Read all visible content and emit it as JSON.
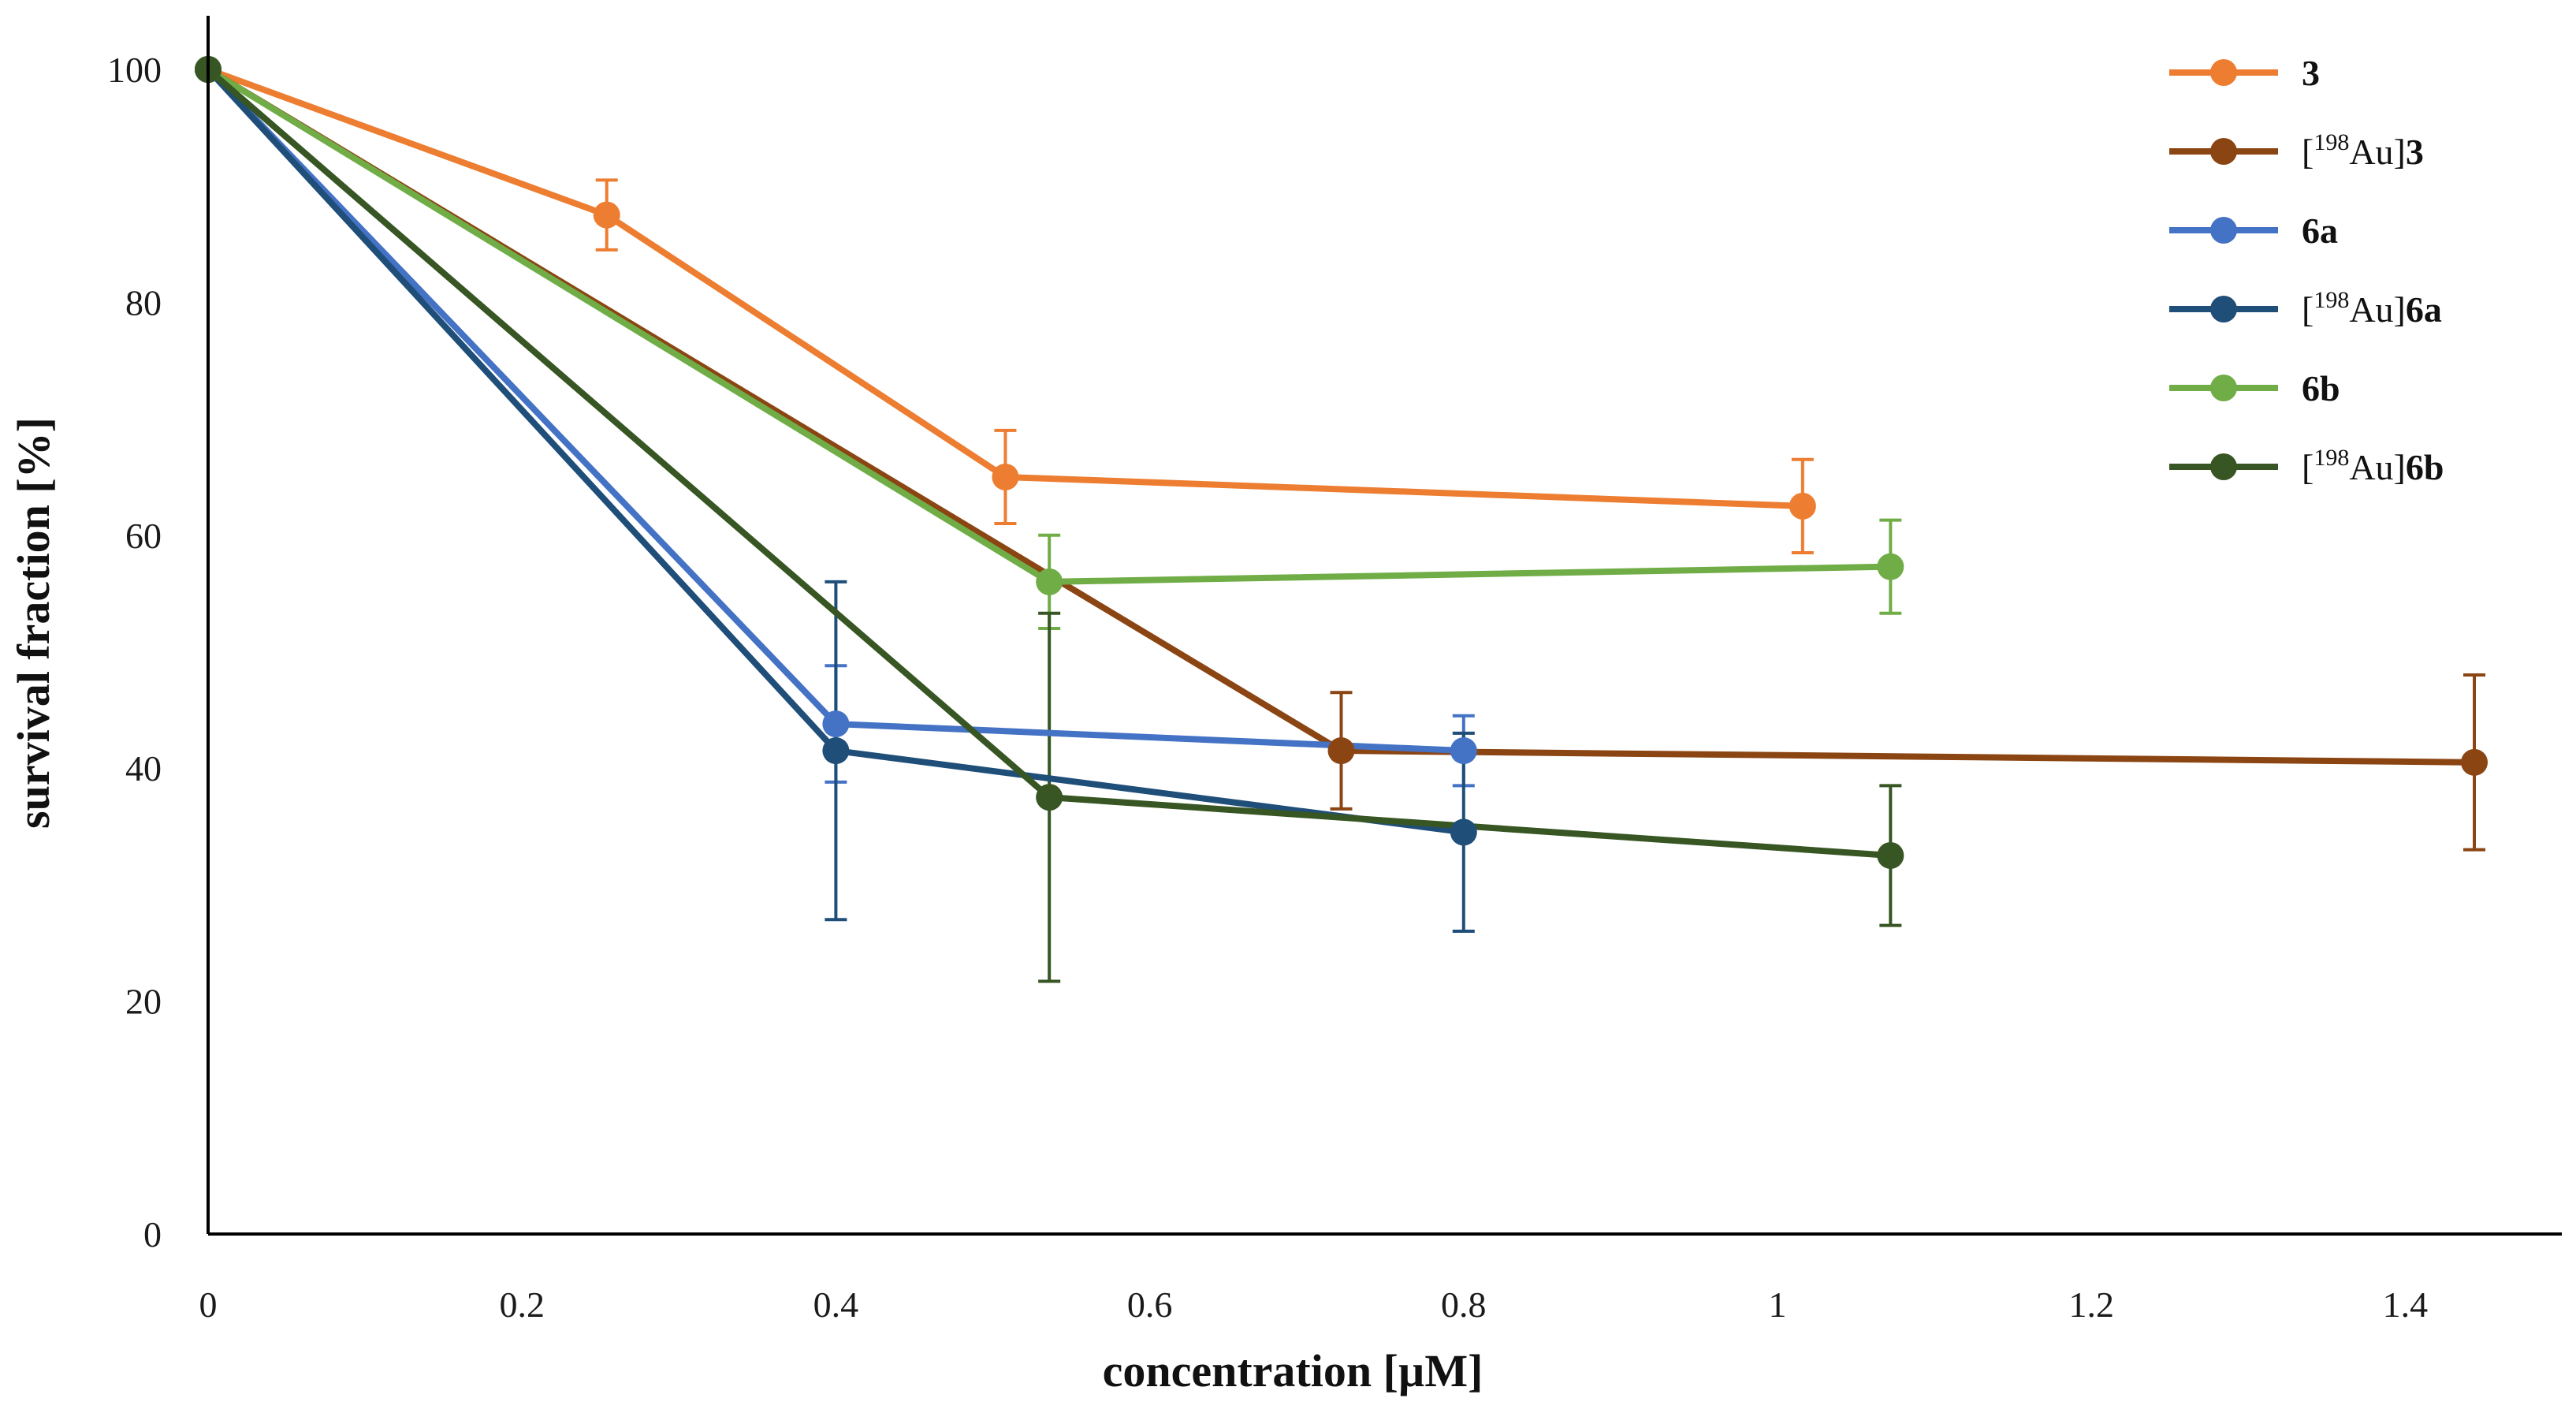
{
  "chart_data": {
    "type": "line",
    "title": "",
    "xlabel": "concentration [µM]",
    "ylabel": "survival fraction [%]",
    "xlim": [
      0,
      1.5
    ],
    "ylim": [
      0,
      100
    ],
    "xticks": [
      "0",
      "0.2",
      "0.4",
      "0.6",
      "0.8",
      "1",
      "1.2",
      "1.4"
    ],
    "yticks": [
      "0",
      "20",
      "40",
      "60",
      "80",
      "100"
    ],
    "legend_position": "top-right",
    "grid": false,
    "series": [
      {
        "name": "3",
        "legend": {
          "bracket_open": "",
          "superscript": "",
          "prefix": "",
          "bold": "3"
        },
        "color": "#ED7D31",
        "x": [
          0,
          0.254,
          0.508,
          1.016
        ],
        "y": [
          100,
          87.5,
          65,
          62.5
        ],
        "err": [
          0,
          3,
          4,
          4
        ]
      },
      {
        "name": "[198Au]3",
        "legend": {
          "bracket_open": "[",
          "superscript": "198",
          "prefix": "Au]",
          "bold": "3"
        },
        "color": "#8B4513",
        "x": [
          0,
          0.722,
          1.444
        ],
        "y": [
          100,
          41.5,
          40.5
        ],
        "err": [
          0,
          5,
          7.5
        ]
      },
      {
        "name": "6a",
        "legend": {
          "bracket_open": "",
          "superscript": "",
          "prefix": "",
          "bold": "6a"
        },
        "color": "#4472C4",
        "x": [
          0,
          0.4,
          0.8
        ],
        "y": [
          100,
          43.8,
          41.5
        ],
        "err": [
          0,
          5,
          3
        ]
      },
      {
        "name": "[198Au]6a",
        "legend": {
          "bracket_open": "[",
          "superscript": "198",
          "prefix": "Au]",
          "bold": "6a"
        },
        "color": "#1F4E79",
        "x": [
          0,
          0.4,
          0.8
        ],
        "y": [
          100,
          41.5,
          34.5
        ],
        "err": [
          0,
          14.5,
          8.5
        ]
      },
      {
        "name": "6b",
        "legend": {
          "bracket_open": "",
          "superscript": "",
          "prefix": "",
          "bold": "6b"
        },
        "color": "#70AD47",
        "x": [
          0,
          0.536,
          1.072
        ],
        "y": [
          100,
          56,
          57.3
        ],
        "err": [
          0,
          4,
          4
        ]
      },
      {
        "name": "[198Au]6b",
        "legend": {
          "bracket_open": "[",
          "superscript": "198",
          "prefix": "Au]",
          "bold": "6b"
        },
        "color": "#375623",
        "x": [
          0,
          0.536,
          1.072
        ],
        "y": [
          100,
          37.5,
          32.5
        ],
        "err": [
          0,
          15.8,
          6
        ]
      }
    ]
  }
}
